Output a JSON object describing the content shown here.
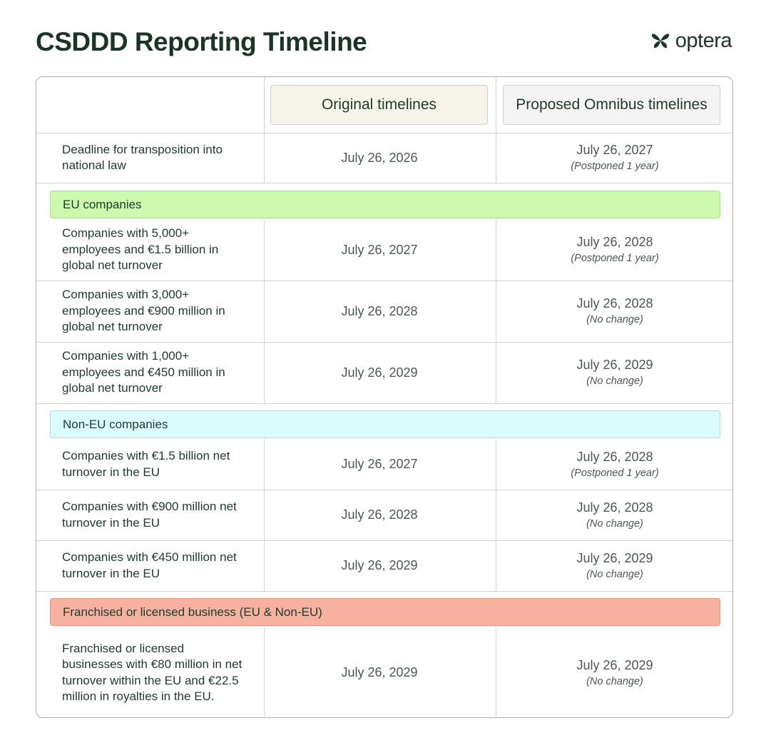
{
  "title": "CSDDD Reporting Timeline",
  "logo": {
    "name": "optera",
    "icon": "optera-butterfly-logo",
    "color": "#1a3526"
  },
  "headers": {
    "original": "Original timelines",
    "proposed": "Proposed Omnibus timelines"
  },
  "transposition": {
    "label": "Deadline for transposition into national law",
    "original": "July 26, 2026",
    "proposed": "July 26, 2027",
    "note": "(Postponed 1 year)"
  },
  "sections": [
    {
      "title": "EU companies",
      "color": "#ccf9ae",
      "rows": [
        {
          "label": "Companies with 5,000+ employees and €1.5 billion in global net turnover",
          "original": "July 26, 2027",
          "proposed": "July 26, 2028",
          "note": "(Postponed 1 year)"
        },
        {
          "label": "Companies with 3,000+ employees and €900 million in global net turnover",
          "original": "July 26, 2028",
          "proposed": "July 26, 2028",
          "note": "(No change)"
        },
        {
          "label": "Companies with 1,000+ employees and €450 million in global net turnover",
          "original": "July 26, 2029",
          "proposed": "July 26, 2029",
          "note": "(No change)"
        }
      ]
    },
    {
      "title": "Non-EU companies",
      "color": "#dcfbfd",
      "rows": [
        {
          "label": "Companies with €1.5 billion net turnover in the EU",
          "original": "July 26, 2027",
          "proposed": "July 26, 2028",
          "note": "(Postponed 1 year)"
        },
        {
          "label": "Companies with €900 million net turnover in the EU",
          "original": "July 26, 2028",
          "proposed": "July 26, 2028",
          "note": "(No change)"
        },
        {
          "label": "Companies with €450 million net turnover in the EU",
          "original": "July 26, 2029",
          "proposed": "July 26, 2029",
          "note": "(No change)"
        }
      ]
    },
    {
      "title": "Franchised or licensed business (EU & Non-EU)",
      "color": "#f7b1a1",
      "rows": [
        {
          "label": "Franchised or licensed businesses with €80 million in net turnover within the EU and €22.5 million in royalties in the EU.",
          "original": "July 26, 2029",
          "proposed": "July 26, 2029",
          "note": "(No change)"
        }
      ]
    }
  ]
}
